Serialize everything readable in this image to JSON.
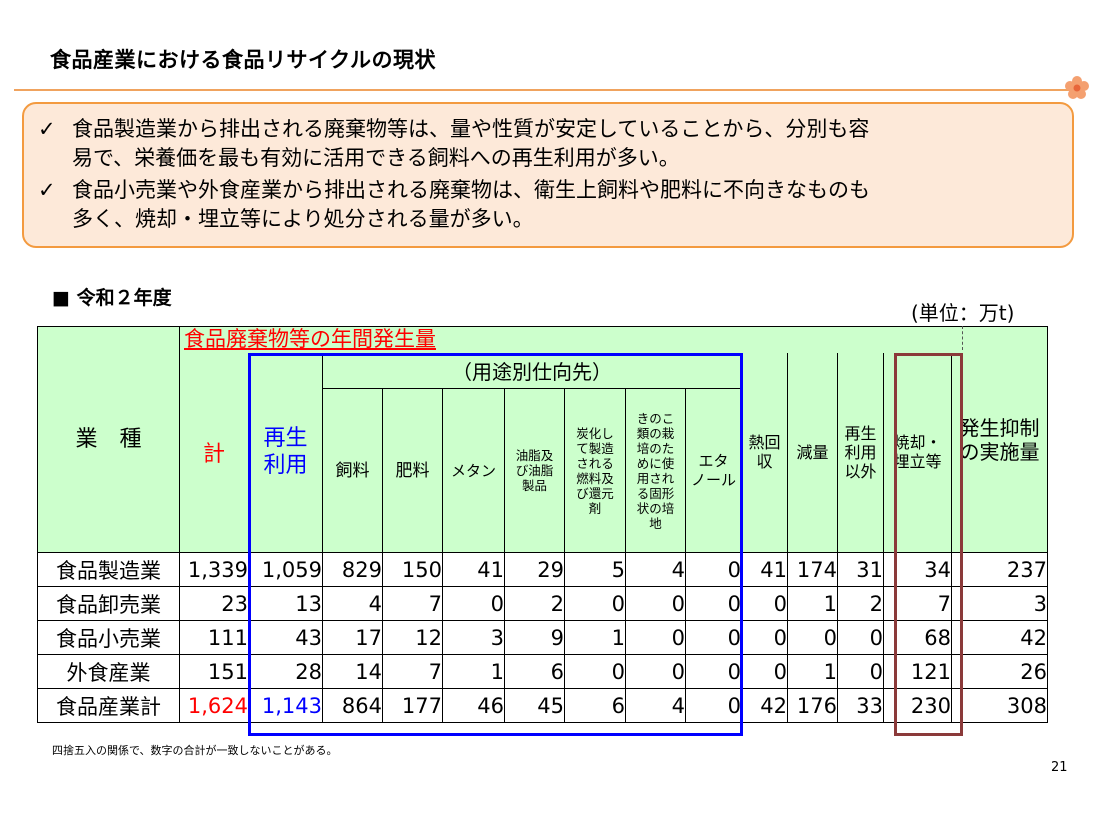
{
  "title": "食品産業における食品リサイクルの現状",
  "bullets": [
    {
      "mark": "✓",
      "lines": [
        "食品製造業から排出される廃棄物等は、量や性質が安定していることから、分別も容",
        "易で、栄養価を最も有効に活用できる飼料への再生利用が多い。"
      ]
    },
    {
      "mark": "✓",
      "lines": [
        "食品小売業や外食産業から排出される廃棄物は、衛生上飼料や肥料に不向きなものも",
        "多く、焼却・埋立等により処分される量が多い。"
      ]
    }
  ],
  "section_title": "■ 令和２年度",
  "unit": "(単位：万t)",
  "table": {
    "header_industry": "業　種",
    "header_group": "食品廃棄物等の年間発生量",
    "header_usage": "（用途別仕向先）",
    "header_total": "計",
    "header_recycle": [
      "再生",
      "利用"
    ],
    "col_feed": "飼料",
    "col_fertilizer": "肥料",
    "col_methane": "メタン",
    "col_oil": [
      "油脂及",
      "び油脂",
      "製品"
    ],
    "col_carbon": [
      "炭化し",
      "て製造",
      "される",
      "燃料及",
      "び還元",
      "剤"
    ],
    "col_mushroom": [
      "きのこ",
      "類の栽",
      "培のた",
      "めに使",
      "用され",
      "る固形",
      "状の培",
      "地"
    ],
    "col_ethanol": [
      "エタ",
      "ノール"
    ],
    "col_heat": [
      "熱回",
      "収"
    ],
    "col_reduction": "減量",
    "col_other": [
      "再生",
      "利用",
      "以外"
    ],
    "col_incineration": [
      "焼却・",
      "埋立等"
    ],
    "col_suppression": [
      "発生抑制",
      "の実施量"
    ],
    "rows": [
      {
        "name": "食品製造業",
        "values": [
          "1,339",
          "1,059",
          "829",
          "150",
          "41",
          "29",
          "5",
          "4",
          "0",
          "41",
          "174",
          "31",
          "34",
          "237"
        ]
      },
      {
        "name": "食品卸売業",
        "values": [
          "23",
          "13",
          "4",
          "7",
          "0",
          "2",
          "0",
          "0",
          "0",
          "0",
          "1",
          "2",
          "7",
          "3"
        ]
      },
      {
        "name": "食品小売業",
        "values": [
          "111",
          "43",
          "17",
          "12",
          "3",
          "9",
          "1",
          "0",
          "0",
          "0",
          "0",
          "0",
          "68",
          "42"
        ]
      },
      {
        "name": "外食産業",
        "values": [
          "151",
          "28",
          "14",
          "7",
          "1",
          "6",
          "0",
          "0",
          "0",
          "0",
          "1",
          "0",
          "121",
          "26"
        ]
      }
    ],
    "total_row": {
      "name": "食品産業計",
      "values": [
        "1,624",
        "1,143",
        "864",
        "177",
        "46",
        "45",
        "6",
        "4",
        "0",
        "42",
        "176",
        "33",
        "230",
        "308"
      ]
    }
  },
  "note": "四捨五入の関係で、数字の合計が一致しないことがある。",
  "page_number": "21",
  "colors": {
    "header_bg": "#ccffcc",
    "accent_orange": "#f39a3f",
    "box_bg": "#fde9d9",
    "red": "#ff0000",
    "blue": "#0000ff",
    "brown": "#8b3a3a"
  }
}
